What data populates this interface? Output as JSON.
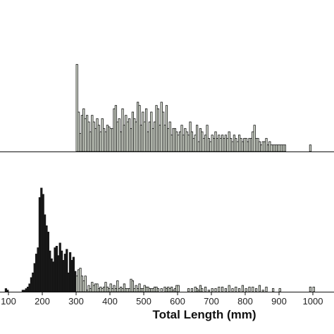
{
  "chart_data": {
    "type": "bar",
    "xlabel": "Total Length (mm)",
    "ylabel": "",
    "title": "",
    "xlim": [
      80,
      1060
    ],
    "bin_width": 5,
    "x_ticks": [
      100,
      200,
      300,
      400,
      500,
      600,
      700,
      800,
      900,
      1000
    ],
    "x_tick_labels": [
      "100",
      "200",
      "300",
      "400",
      "500",
      "600",
      "700",
      "800",
      "900",
      "1000"
    ],
    "colors": {
      "dark": "#1a1a1a",
      "light": "#e2e8dc",
      "outline": "#111111"
    },
    "panels": [
      {
        "name": "upper",
        "ylim": [
          0,
          60
        ],
        "series": [
          {
            "fill": "light",
            "x": [
              300,
              305,
              310,
              315,
              320,
              325,
              330,
              335,
              340,
              345,
              350,
              355,
              360,
              365,
              370,
              375,
              380,
              385,
              390,
              395,
              400,
              405,
              410,
              415,
              420,
              425,
              430,
              435,
              440,
              445,
              450,
              455,
              460,
              465,
              470,
              475,
              480,
              485,
              490,
              495,
              500,
              505,
              510,
              515,
              520,
              525,
              530,
              535,
              540,
              545,
              550,
              555,
              560,
              565,
              570,
              575,
              580,
              585,
              590,
              595,
              600,
              605,
              610,
              615,
              620,
              625,
              630,
              635,
              640,
              645,
              650,
              655,
              660,
              665,
              670,
              675,
              680,
              685,
              690,
              695,
              700,
              705,
              710,
              715,
              720,
              725,
              730,
              735,
              740,
              745,
              750,
              755,
              760,
              765,
              770,
              775,
              780,
              785,
              790,
              795,
              800,
              805,
              810,
              815,
              820,
              825,
              830,
              835,
              840,
              845,
              850,
              855,
              860,
              865,
              870,
              875,
              880,
              885,
              890,
              895,
              900,
              905,
              910,
              915,
              990
            ],
            "values": [
              53,
              24,
              11,
              22,
              26,
              20,
              22,
              18,
              12,
              22,
              18,
              14,
              20,
              16,
              12,
              20,
              14,
              12,
              16,
              15,
              14,
              14,
              26,
              28,
              18,
              20,
              12,
              26,
              16,
              22,
              18,
              20,
              14,
              24,
              20,
              18,
              30,
              28,
              16,
              24,
              18,
              26,
              12,
              18,
              24,
              14,
              18,
              28,
              26,
              16,
              30,
              24,
              16,
              28,
              14,
              18,
              10,
              14,
              14,
              12,
              10,
              12,
              16,
              10,
              14,
              12,
              10,
              18,
              12,
              8,
              10,
              16,
              6,
              14,
              12,
              8,
              10,
              16,
              8,
              6,
              10,
              8,
              12,
              8,
              10,
              8,
              10,
              8,
              10,
              8,
              12,
              8,
              6,
              10,
              8,
              6,
              10,
              8,
              6,
              8,
              8,
              6,
              8,
              8,
              12,
              16,
              8,
              8,
              6,
              4,
              6,
              6,
              8,
              4,
              6,
              4,
              4,
              4,
              4,
              4,
              4,
              4,
              4,
              4,
              4
            ]
          }
        ]
      },
      {
        "name": "lower",
        "ylim": [
          0,
          140
        ],
        "series": [
          {
            "fill": "dark",
            "x": [
              80,
              85,
              90,
              95,
              100,
              105,
              110,
              115,
              120,
              125,
              130,
              135,
              140,
              145,
              150,
              155,
              160,
              165,
              170,
              175,
              180,
              185,
              190,
              195,
              200,
              205,
              210,
              215,
              220,
              225,
              230,
              235,
              240,
              245,
              250,
              255,
              260,
              265,
              270,
              275,
              280,
              285,
              290,
              295,
              300,
              305
            ],
            "values": [
              0,
              0,
              4,
              2,
              0,
              0,
              0,
              0,
              0,
              0,
              0,
              0,
              2,
              2,
              4,
              6,
              10,
              18,
              24,
              36,
              48,
              56,
              120,
              132,
              124,
              98,
              84,
              76,
              52,
              42,
              38,
              56,
              58,
              46,
              62,
              52,
              40,
              48,
              54,
              24,
              50,
              40,
              44,
              26,
              10,
              10
            ]
          },
          {
            "fill": "light",
            "x": [
              300,
              305,
              310,
              315,
              320,
              325,
              330,
              335,
              340,
              345,
              350,
              355,
              360,
              365,
              370,
              375,
              380,
              385,
              390,
              395,
              400,
              405,
              410,
              415,
              420,
              425,
              430,
              435,
              440,
              445,
              450,
              455,
              460,
              465,
              470,
              475,
              480,
              485,
              490,
              495,
              500,
              505,
              510,
              515,
              520,
              525,
              530,
              535,
              540,
              545,
              550,
              555,
              560,
              565,
              570,
              575,
              580,
              585,
              590,
              595,
              600,
              605,
              610,
              615,
              620,
              625,
              630,
              635,
              640,
              645,
              650,
              655,
              660,
              665,
              670,
              675,
              680,
              685,
              690,
              695,
              700,
              705,
              710,
              715,
              720,
              725,
              730,
              735,
              740,
              745,
              750,
              755,
              760,
              765,
              770,
              775,
              780,
              785,
              790,
              795,
              800,
              805,
              810,
              815,
              820,
              825,
              830,
              835,
              840,
              845,
              850,
              855,
              860,
              865,
              870,
              875,
              880,
              885,
              890,
              895,
              900,
              905,
              910,
              915,
              920,
              925,
              930,
              935,
              940,
              945,
              950,
              955,
              960,
              965,
              970,
              975,
              980,
              985,
              990,
              995,
              1000,
              1005
            ],
            "values": [
              20,
              28,
              30,
              20,
              14,
              20,
              2,
              8,
              4,
              12,
              8,
              10,
              10,
              4,
              6,
              4,
              6,
              12,
              6,
              4,
              10,
              4,
              8,
              4,
              14,
              4,
              6,
              4,
              10,
              4,
              4,
              4,
              16,
              14,
              4,
              8,
              4,
              10,
              4,
              4,
              8,
              6,
              6,
              4,
              4,
              4,
              6,
              6,
              4,
              0,
              4,
              0,
              6,
              4,
              6,
              4,
              6,
              2,
              4,
              8,
              8,
              0,
              0,
              0,
              0,
              0,
              4,
              0,
              4,
              0,
              6,
              4,
              2,
              8,
              4,
              0,
              6,
              0,
              2,
              0,
              4,
              0,
              4,
              0,
              6,
              0,
              6,
              0,
              4,
              0,
              8,
              0,
              4,
              0,
              6,
              0,
              4,
              0,
              8,
              0,
              4,
              0,
              6,
              0,
              6,
              0,
              4,
              0,
              8,
              0,
              2,
              0,
              6,
              0,
              0,
              0,
              4,
              0,
              0,
              0,
              4,
              0,
              0,
              0,
              0,
              0,
              0,
              0,
              0,
              0,
              0,
              0,
              0,
              0,
              0,
              0,
              0,
              0,
              6,
              0,
              6,
              0
            ]
          }
        ]
      }
    ]
  }
}
